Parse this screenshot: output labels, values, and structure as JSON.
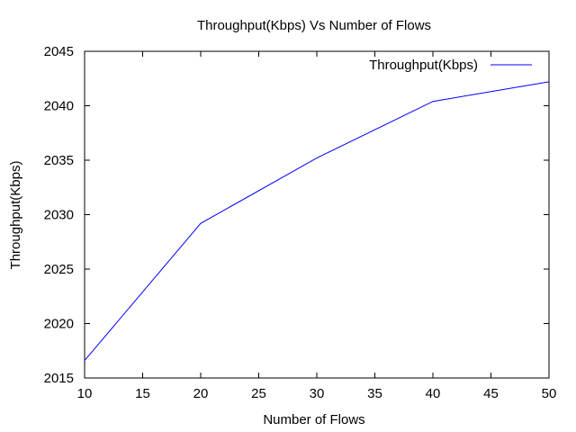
{
  "chart_data": {
    "type": "line",
    "title": "Throughput(Kbps) Vs Number of Flows",
    "xlabel": "Number of Flows",
    "ylabel": "Throughput(Kbps)",
    "xlim": [
      10,
      50
    ],
    "ylim": [
      2015,
      2045
    ],
    "xticks": [
      10,
      15,
      20,
      25,
      30,
      35,
      40,
      45,
      50
    ],
    "yticks": [
      2015,
      2020,
      2025,
      2030,
      2035,
      2040,
      2045
    ],
    "grid": false,
    "legend_position": "top-right",
    "series": [
      {
        "name": "Throughput(Kbps)",
        "color": "#0000ff",
        "x": [
          10,
          20,
          30,
          40,
          50
        ],
        "y": [
          2016.6,
          2029.2,
          2035.2,
          2040.4,
          2042.2
        ]
      }
    ]
  }
}
